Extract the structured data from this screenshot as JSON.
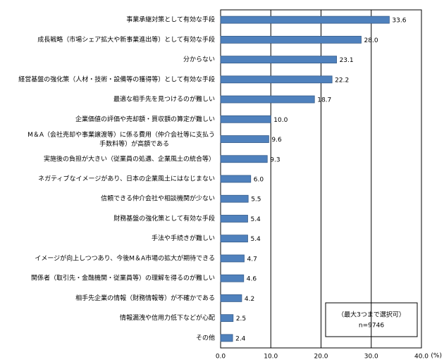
{
  "chart_data": {
    "type": "bar",
    "orientation": "horizontal",
    "categories": [
      "事業承継対策として有効な手段",
      "成長戦略（市場シェア拡大や新事業進出等）として有効な手段",
      "分からない",
      "経営基盤の強化策（人材・技術・設備等の獲得等）として有効な手段",
      "最適な相手先を見つけるのが難しい",
      "企業価値の評価や売却額・買収額の算定が難しい",
      "M＆A（会社売却や事業譲渡等）に係る費用（仲介会社等に支払う\n手数料等）が高額である",
      "実施後の負担が大きい（従業員の処遇、企業風土の統合等）",
      "ネガティブなイメージがあり、日本の企業風土にはなじまない",
      "信頼できる仲介会社や相談機関が少ない",
      "財務基盤の強化策として有効な手段",
      "手法や手続きが難しい",
      "イメージが向上しつつあり、今後M＆A市場の拡大が期待できる",
      "関係者（取引先・金融機関・従業員等）の理解を得るのが難しい",
      "相手先企業の情報（財務情報等）が不確かである",
      "情報漏洩や信用力低下などが心配",
      "その他"
    ],
    "values": [
      33.6,
      28,
      23.1,
      22.2,
      18.7,
      10,
      9.6,
      9.3,
      6,
      5.5,
      5.4,
      5.4,
      4.7,
      4.6,
      4.2,
      2.5,
      2.4
    ],
    "value_labels": [
      "33.6",
      "28.0",
      "23.1",
      "22.2",
      "18.7",
      "10.0",
      "9.6",
      "9.3",
      "6.0",
      "5.5",
      "5.4",
      "5.4",
      "4.7",
      "4.6",
      "4.2",
      "2.5",
      "2.4"
    ],
    "color": "#4f81bd",
    "xlim": [
      0,
      40
    ],
    "xticks": [
      {
        "value": 0,
        "label": "0.0"
      },
      {
        "value": 10,
        "label": "10.0"
      },
      {
        "value": 20,
        "label": "20.0"
      },
      {
        "value": 30,
        "label": "30.0"
      },
      {
        "value": 40,
        "label": "40.0"
      }
    ],
    "x_unit": "(%)",
    "grid": true,
    "note": [
      "（最大3つまで選択可）",
      "n=9746"
    ]
  }
}
